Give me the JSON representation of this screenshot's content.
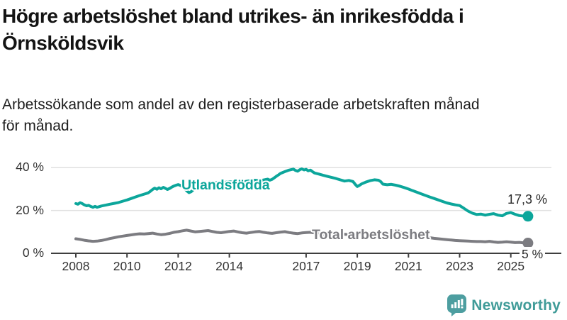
{
  "header": {
    "title_lines": [
      "Högre arbetslöshet bland utrikes- än inrikesfödda i",
      "Örnsköldsvik"
    ],
    "subtitle_lines": [
      "Arbetssökande som andel av den registerbaserade arbetskraften månad",
      "för månad."
    ]
  },
  "footer": {
    "brand": "Newsworthy",
    "logo_icon": "bar-chart-speech-bubble",
    "brand_text_color": "#3f9b98",
    "logo_bg_color": "#4d9ea0"
  },
  "chart_data": {
    "type": "line",
    "unit": "%",
    "grid": "horizontal",
    "x_ticks": [
      2008,
      2010,
      2012,
      2014,
      2017,
      2019,
      2021,
      2023,
      2025
    ],
    "y_ticks": [
      0,
      20,
      40
    ],
    "y_tick_labels": [
      "0 %",
      "20 %",
      "40 %"
    ],
    "xlim": [
      2008,
      2025.67
    ],
    "ylim": [
      0,
      44
    ],
    "series": [
      {
        "name": "Utlandsfödda",
        "color": "#0ca69b",
        "end_label": "17,3 %",
        "end_value": 17.3,
        "points": [
          [
            2008.0,
            23.2
          ],
          [
            2008.08,
            22.9
          ],
          [
            2008.17,
            23.6
          ],
          [
            2008.25,
            23.2
          ],
          [
            2008.33,
            22.6
          ],
          [
            2008.42,
            22.2
          ],
          [
            2008.5,
            22.4
          ],
          [
            2008.58,
            21.9
          ],
          [
            2008.67,
            21.5
          ],
          [
            2008.75,
            21.9
          ],
          [
            2008.83,
            21.5
          ],
          [
            2008.92,
            21.8
          ],
          [
            2009.0,
            22.1
          ],
          [
            2009.17,
            22.5
          ],
          [
            2009.33,
            22.9
          ],
          [
            2009.5,
            23.3
          ],
          [
            2009.67,
            23.7
          ],
          [
            2009.83,
            24.3
          ],
          [
            2010.0,
            24.9
          ],
          [
            2010.17,
            25.6
          ],
          [
            2010.33,
            26.3
          ],
          [
            2010.5,
            27.0
          ],
          [
            2010.67,
            27.6
          ],
          [
            2010.83,
            28.2
          ],
          [
            2010.92,
            29.0
          ],
          [
            2011.0,
            29.8
          ],
          [
            2011.08,
            30.4
          ],
          [
            2011.17,
            29.9
          ],
          [
            2011.25,
            30.6
          ],
          [
            2011.33,
            30.1
          ],
          [
            2011.42,
            30.8
          ],
          [
            2011.5,
            30.3
          ],
          [
            2011.58,
            29.8
          ],
          [
            2011.67,
            30.3
          ],
          [
            2011.75,
            30.9
          ],
          [
            2011.83,
            31.4
          ],
          [
            2011.92,
            31.8
          ],
          [
            2012.0,
            32.1
          ],
          [
            2012.08,
            31.7
          ],
          [
            2012.17,
            31.2
          ],
          [
            2012.25,
            30.3
          ],
          [
            2012.33,
            29.2
          ],
          [
            2012.42,
            28.3
          ],
          [
            2012.5,
            28.7
          ],
          [
            2012.58,
            29.5
          ],
          [
            2012.67,
            30.4
          ],
          [
            2012.75,
            31.3
          ],
          [
            2012.83,
            31.9
          ],
          [
            2012.92,
            32.3
          ],
          [
            2013.0,
            32.6
          ],
          [
            2013.17,
            32.2
          ],
          [
            2013.33,
            32.7
          ],
          [
            2013.5,
            33.0
          ],
          [
            2013.67,
            32.7
          ],
          [
            2013.83,
            33.1
          ],
          [
            2014.0,
            33.4
          ],
          [
            2014.17,
            33.1
          ],
          [
            2014.33,
            33.5
          ],
          [
            2014.5,
            33.2
          ],
          [
            2014.67,
            33.6
          ],
          [
            2014.83,
            33.9
          ],
          [
            2015.0,
            34.1
          ],
          [
            2015.17,
            33.8
          ],
          [
            2015.33,
            34.2
          ],
          [
            2015.5,
            34.6
          ],
          [
            2015.58,
            34.1
          ],
          [
            2015.67,
            34.5
          ],
          [
            2015.75,
            35.2
          ],
          [
            2015.83,
            35.9
          ],
          [
            2015.92,
            36.6
          ],
          [
            2016.0,
            37.3
          ],
          [
            2016.17,
            38.1
          ],
          [
            2016.33,
            38.8
          ],
          [
            2016.5,
            39.3
          ],
          [
            2016.58,
            38.7
          ],
          [
            2016.67,
            38.3
          ],
          [
            2016.75,
            39.0
          ],
          [
            2016.83,
            39.4
          ],
          [
            2016.92,
            38.9
          ],
          [
            2017.0,
            39.2
          ],
          [
            2017.08,
            38.5
          ],
          [
            2017.17,
            38.8
          ],
          [
            2017.25,
            38.1
          ],
          [
            2017.33,
            37.5
          ],
          [
            2017.5,
            37.0
          ],
          [
            2017.67,
            36.4
          ],
          [
            2017.83,
            35.9
          ],
          [
            2018.0,
            35.4
          ],
          [
            2018.17,
            34.9
          ],
          [
            2018.33,
            34.3
          ],
          [
            2018.5,
            33.7
          ],
          [
            2018.67,
            34.0
          ],
          [
            2018.83,
            33.5
          ],
          [
            2018.92,
            32.2
          ],
          [
            2019.0,
            31.2
          ],
          [
            2019.08,
            31.7
          ],
          [
            2019.17,
            32.4
          ],
          [
            2019.33,
            33.2
          ],
          [
            2019.5,
            33.9
          ],
          [
            2019.67,
            34.3
          ],
          [
            2019.83,
            34.1
          ],
          [
            2019.92,
            33.4
          ],
          [
            2020.0,
            32.3
          ],
          [
            2020.17,
            32.0
          ],
          [
            2020.33,
            32.2
          ],
          [
            2020.5,
            31.8
          ],
          [
            2020.67,
            31.3
          ],
          [
            2020.83,
            30.7
          ],
          [
            2021.0,
            30.0
          ],
          [
            2021.17,
            29.2
          ],
          [
            2021.33,
            28.5
          ],
          [
            2021.5,
            27.7
          ],
          [
            2021.67,
            27.0
          ],
          [
            2021.83,
            26.3
          ],
          [
            2022.0,
            25.6
          ],
          [
            2022.17,
            24.9
          ],
          [
            2022.33,
            24.2
          ],
          [
            2022.5,
            23.5
          ],
          [
            2022.67,
            23.0
          ],
          [
            2022.83,
            22.6
          ],
          [
            2023.0,
            22.3
          ],
          [
            2023.17,
            21.0
          ],
          [
            2023.33,
            19.7
          ],
          [
            2023.5,
            18.7
          ],
          [
            2023.67,
            18.1
          ],
          [
            2023.83,
            18.3
          ],
          [
            2024.0,
            17.8
          ],
          [
            2024.17,
            18.2
          ],
          [
            2024.33,
            18.5
          ],
          [
            2024.5,
            17.8
          ],
          [
            2024.67,
            17.5
          ],
          [
            2024.83,
            18.6
          ],
          [
            2025.0,
            19.0
          ],
          [
            2025.17,
            18.2
          ],
          [
            2025.33,
            17.6
          ],
          [
            2025.5,
            17.4
          ],
          [
            2025.67,
            17.3
          ]
        ]
      },
      {
        "name": "Total arbetslöshet",
        "color": "#7c7c81",
        "end_label": "5 %",
        "end_value": 5,
        "points": [
          [
            2008.0,
            6.8
          ],
          [
            2008.17,
            6.5
          ],
          [
            2008.33,
            6.1
          ],
          [
            2008.5,
            5.8
          ],
          [
            2008.67,
            5.6
          ],
          [
            2008.83,
            5.7
          ],
          [
            2009.0,
            6.0
          ],
          [
            2009.17,
            6.4
          ],
          [
            2009.33,
            6.9
          ],
          [
            2009.5,
            7.3
          ],
          [
            2009.67,
            7.7
          ],
          [
            2009.83,
            8.0
          ],
          [
            2010.0,
            8.3
          ],
          [
            2010.17,
            8.6
          ],
          [
            2010.33,
            8.9
          ],
          [
            2010.5,
            9.1
          ],
          [
            2010.67,
            9.0
          ],
          [
            2010.83,
            9.2
          ],
          [
            2011.0,
            9.4
          ],
          [
            2011.17,
            9.0
          ],
          [
            2011.33,
            8.7
          ],
          [
            2011.5,
            8.9
          ],
          [
            2011.67,
            9.3
          ],
          [
            2011.83,
            9.8
          ],
          [
            2012.0,
            10.1
          ],
          [
            2012.17,
            10.5
          ],
          [
            2012.33,
            10.8
          ],
          [
            2012.5,
            10.4
          ],
          [
            2012.67,
            10.0
          ],
          [
            2012.83,
            10.2
          ],
          [
            2013.0,
            10.4
          ],
          [
            2013.17,
            10.6
          ],
          [
            2013.33,
            10.2
          ],
          [
            2013.5,
            9.8
          ],
          [
            2013.67,
            9.6
          ],
          [
            2013.83,
            9.9
          ],
          [
            2014.0,
            10.2
          ],
          [
            2014.17,
            10.4
          ],
          [
            2014.33,
            10.0
          ],
          [
            2014.5,
            9.6
          ],
          [
            2014.67,
            9.4
          ],
          [
            2014.83,
            9.7
          ],
          [
            2015.0,
            10.0
          ],
          [
            2015.17,
            10.2
          ],
          [
            2015.33,
            9.8
          ],
          [
            2015.5,
            9.5
          ],
          [
            2015.67,
            9.3
          ],
          [
            2015.83,
            9.6
          ],
          [
            2016.0,
            9.9
          ],
          [
            2016.17,
            10.1
          ],
          [
            2016.33,
            9.7
          ],
          [
            2016.5,
            9.4
          ],
          [
            2016.67,
            9.2
          ],
          [
            2016.83,
            9.5
          ],
          [
            2017.0,
            9.7
          ],
          [
            2017.17,
            9.8
          ],
          [
            2017.33,
            9.5
          ],
          [
            2017.5,
            9.2
          ],
          [
            2017.67,
            9.0
          ],
          [
            2017.83,
            9.2
          ],
          [
            2018.0,
            9.4
          ],
          [
            2018.17,
            9.5
          ],
          [
            2018.33,
            9.2
          ],
          [
            2018.5,
            8.9
          ],
          [
            2018.67,
            8.7
          ],
          [
            2018.83,
            8.9
          ],
          [
            2019.0,
            9.1
          ],
          [
            2019.17,
            9.3
          ],
          [
            2019.33,
            9.5
          ],
          [
            2019.5,
            9.4
          ],
          [
            2019.67,
            9.3
          ],
          [
            2019.83,
            9.2
          ],
          [
            2020.0,
            9.1
          ],
          [
            2020.17,
            9.5
          ],
          [
            2020.33,
            9.8
          ],
          [
            2020.5,
            9.9
          ],
          [
            2020.67,
            9.6
          ],
          [
            2020.83,
            9.3
          ],
          [
            2021.0,
            9.0
          ],
          [
            2021.17,
            8.6
          ],
          [
            2021.33,
            8.2
          ],
          [
            2021.5,
            7.9
          ],
          [
            2021.67,
            7.6
          ],
          [
            2021.83,
            7.3
          ],
          [
            2022.0,
            7.0
          ],
          [
            2022.17,
            6.8
          ],
          [
            2022.33,
            6.6
          ],
          [
            2022.5,
            6.4
          ],
          [
            2022.67,
            6.2
          ],
          [
            2022.83,
            6.0
          ],
          [
            2023.0,
            5.9
          ],
          [
            2023.17,
            5.8
          ],
          [
            2023.33,
            5.7
          ],
          [
            2023.5,
            5.6
          ],
          [
            2023.67,
            5.5
          ],
          [
            2023.83,
            5.5
          ],
          [
            2024.0,
            5.4
          ],
          [
            2024.17,
            5.6
          ],
          [
            2024.33,
            5.3
          ],
          [
            2024.5,
            5.1
          ],
          [
            2024.67,
            5.2
          ],
          [
            2024.83,
            5.4
          ],
          [
            2025.0,
            5.2
          ],
          [
            2025.17,
            5.0
          ],
          [
            2025.33,
            5.1
          ],
          [
            2025.5,
            4.9
          ],
          [
            2025.67,
            4.8
          ]
        ]
      }
    ]
  }
}
